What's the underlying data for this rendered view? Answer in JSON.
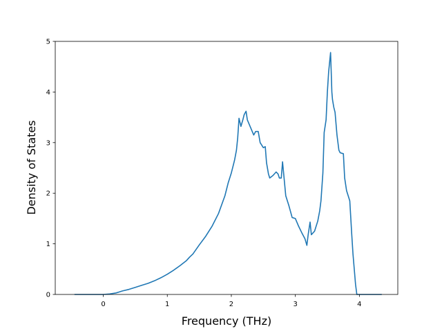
{
  "chart_data": {
    "type": "line",
    "title": "",
    "xlabel": "Frequency (THz)",
    "ylabel": "Density of States",
    "xlim": [
      -0.75,
      4.6
    ],
    "ylim": [
      0,
      5
    ],
    "xticks": [
      0,
      1,
      2,
      3,
      4
    ],
    "yticks": [
      0,
      1,
      2,
      3,
      4,
      5
    ],
    "grid": false,
    "legend": "none",
    "color": "#1f77b4",
    "series": [
      {
        "x": [
          -0.45,
          -0.3,
          -0.1,
          0.0,
          0.05,
          0.1,
          0.15,
          0.2,
          0.25,
          0.3,
          0.4,
          0.5,
          0.6,
          0.7,
          0.8,
          0.9,
          1.0,
          1.1,
          1.2,
          1.3,
          1.35,
          1.4,
          1.5,
          1.6,
          1.7,
          1.8,
          1.9,
          1.95,
          2.0,
          2.05,
          2.08,
          2.1,
          2.12,
          2.15,
          2.18,
          2.2,
          2.23,
          2.25,
          2.3,
          2.35,
          2.38,
          2.42,
          2.45,
          2.5,
          2.53,
          2.55,
          2.58,
          2.6,
          2.65,
          2.7,
          2.73,
          2.75,
          2.78,
          2.8,
          2.85,
          2.9,
          2.95,
          3.0,
          3.05,
          3.1,
          3.15,
          3.18,
          3.2,
          3.23,
          3.25,
          3.3,
          3.35,
          3.38,
          3.4,
          3.43,
          3.45,
          3.48,
          3.5,
          3.52,
          3.55,
          3.56,
          3.57,
          3.58,
          3.6,
          3.62,
          3.65,
          3.68,
          3.7,
          3.75,
          3.77,
          3.8,
          3.85,
          3.88,
          3.9,
          3.92,
          3.94,
          3.96,
          4.0,
          4.1,
          4.2,
          4.3,
          4.35
        ],
        "y": [
          0.0,
          0.0,
          0.0,
          0.0,
          0.005,
          0.01,
          0.02,
          0.03,
          0.05,
          0.07,
          0.1,
          0.14,
          0.18,
          0.22,
          0.27,
          0.33,
          0.4,
          0.48,
          0.57,
          0.67,
          0.74,
          0.8,
          0.98,
          1.15,
          1.35,
          1.6,
          1.95,
          2.2,
          2.4,
          2.65,
          2.85,
          3.1,
          3.48,
          3.32,
          3.45,
          3.55,
          3.62,
          3.45,
          3.3,
          3.15,
          3.22,
          3.22,
          3.0,
          2.9,
          2.92,
          2.6,
          2.38,
          2.3,
          2.35,
          2.42,
          2.38,
          2.3,
          2.3,
          2.62,
          1.95,
          1.75,
          1.52,
          1.5,
          1.35,
          1.22,
          1.1,
          0.97,
          1.18,
          1.43,
          1.18,
          1.25,
          1.45,
          1.65,
          1.85,
          2.4,
          3.2,
          3.45,
          4.0,
          4.4,
          4.78,
          4.4,
          4.0,
          3.85,
          3.7,
          3.6,
          3.15,
          2.85,
          2.8,
          2.78,
          2.3,
          2.05,
          1.85,
          1.2,
          0.8,
          0.5,
          0.2,
          0.0,
          0.0,
          0.0,
          0.0,
          0.0,
          0.0
        ]
      }
    ]
  }
}
